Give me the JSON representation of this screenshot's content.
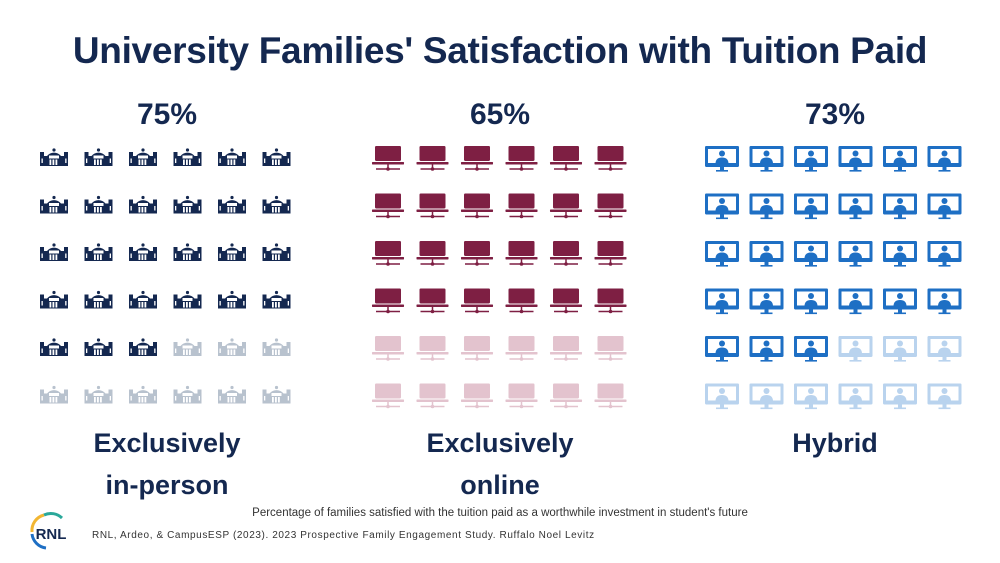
{
  "title": "University Families' Satisfaction with Tuition Paid",
  "chart_data": {
    "type": "pictogram",
    "icons_per_group": 36,
    "groups": [
      {
        "name": "Exclusively in-person",
        "label_line1": "Exclusively",
        "label_line2": "in-person",
        "value_label": "75%",
        "value": 75,
        "filled_icons": 27,
        "icon": "university-building-icon",
        "color": "#142850",
        "faded_color": "#b8c2ce"
      },
      {
        "name": "Exclusively online",
        "label_line1": "Exclusively",
        "label_line2": "online",
        "value_label": "65%",
        "value": 65,
        "filled_icons": 24,
        "icon": "laptop-network-icon",
        "color": "#7e1f43",
        "faded_color": "#e3c3ce"
      },
      {
        "name": "Hybrid",
        "label_line1": "Hybrid",
        "label_line2": "",
        "value_label": "73%",
        "value": 73,
        "filled_icons": 27,
        "icon": "monitor-user-icon",
        "color": "#1e6fc4",
        "faded_color": "#b9d3ee"
      }
    ]
  },
  "footnote": "Percentage of families satisfied with the tuition paid as a worthwhile investment in student's future",
  "citation": "RNL, Ardeo, & CampusESP (2023). 2023 Prospective Family Engagement Study. Ruffalo Noel Levitz",
  "logo": {
    "text": "RNL",
    "colors": [
      "#f2b632",
      "#2aa89a",
      "#1e6fc4"
    ]
  }
}
